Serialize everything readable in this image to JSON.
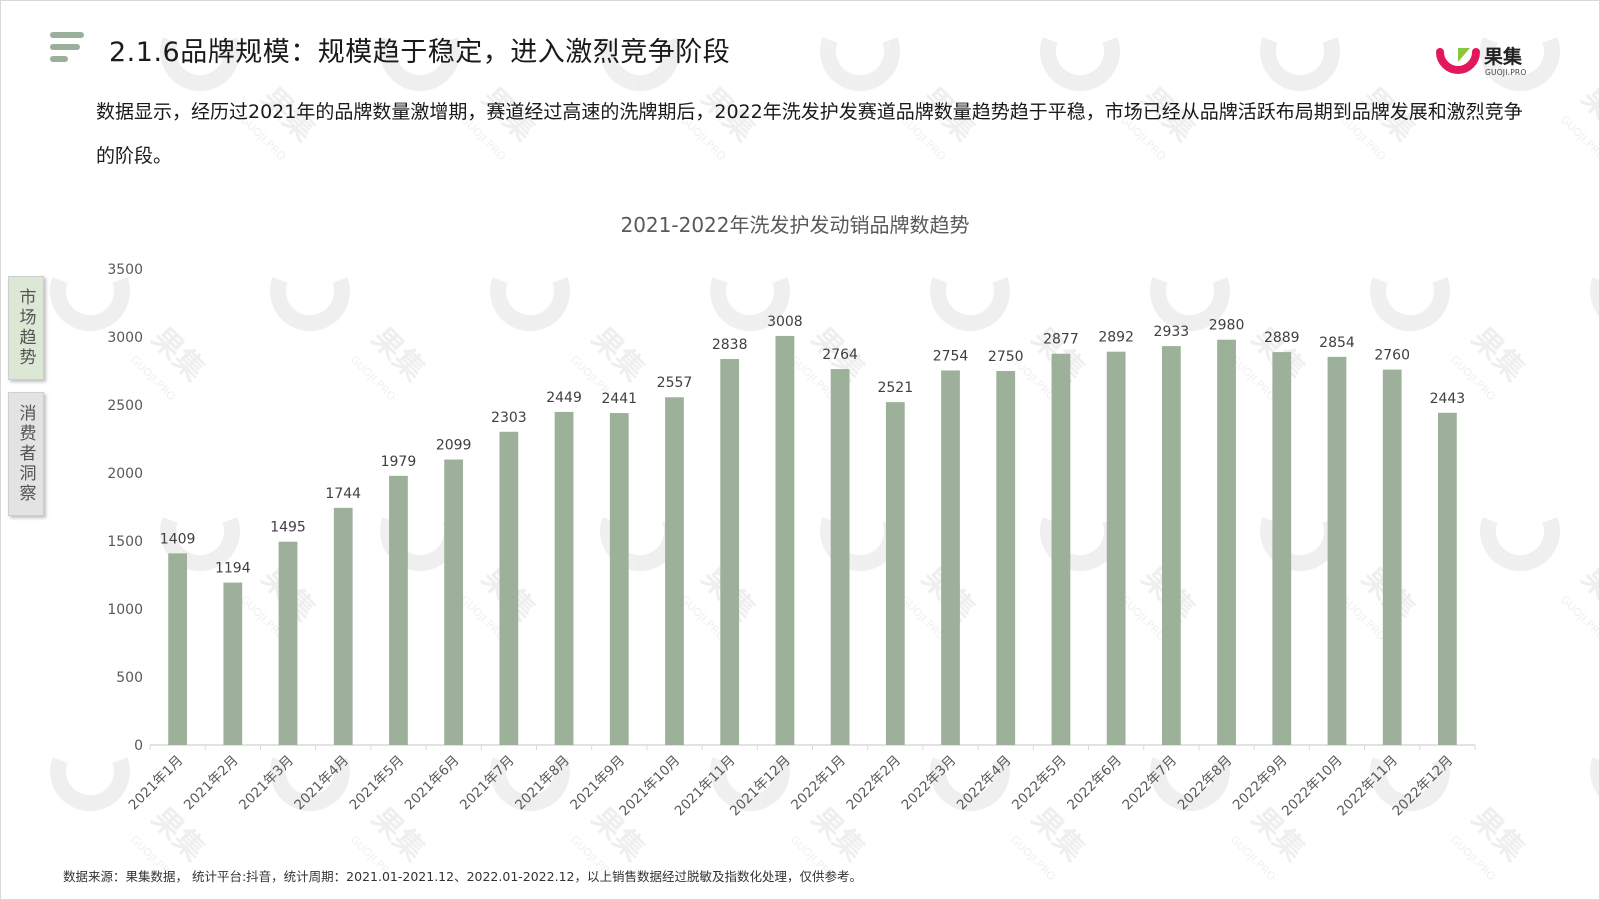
{
  "page": {
    "title": "2.1.6品牌规模：规模趋于稳定，进入激烈竞争阶段",
    "intro": "数据显示，经历过2021年的品牌数量激增期，赛道经过高速的洗牌期后，2022年洗发护发赛道品牌数量趋势趋于平稳，市场已经从品牌活跃布局期到品牌发展和激烈竞争的阶段。",
    "footer": "数据来源：果集数据， 统计平台:抖音，统计周期：2021.01-2021.12、2022.01-2022.12，以上销售数据经过脱敏及指数化处理，仅供参考。"
  },
  "logo": {
    "text": "果集",
    "subtext": "GUOJI.PRO",
    "colors": [
      "#e3175b",
      "#8cc63f"
    ]
  },
  "side_tabs": [
    {
      "label": "市场趋势",
      "active": true
    },
    {
      "label": "消费者洞察",
      "active": false
    }
  ],
  "icons": {
    "menu": "menu-lines-icon",
    "logo": "guoji-logo-icon"
  },
  "colors": {
    "bar": "#9db09a",
    "accent": "#9ab09a",
    "axis": "#d9d9d9",
    "tick_text": "#595959"
  },
  "watermark": {
    "text": "果集",
    "subtext": "GUOJI.PRO"
  },
  "chart_data": {
    "type": "bar",
    "title": "2021-2022年洗发护发动销品牌数趋势",
    "categories": [
      "2021年1月",
      "2021年2月",
      "2021年3月",
      "2021年4月",
      "2021年5月",
      "2021年6月",
      "2021年7月",
      "2021年8月",
      "2021年9月",
      "2021年10月",
      "2021年11月",
      "2021年12月",
      "2022年1月",
      "2022年2月",
      "2022年3月",
      "2022年4月",
      "2022年5月",
      "2022年6月",
      "2022年7月",
      "2022年8月",
      "2022年9月",
      "2022年10月",
      "2022年11月",
      "2022年12月"
    ],
    "values": [
      1409,
      1194,
      1495,
      1744,
      1979,
      2099,
      2303,
      2449,
      2441,
      2557,
      2838,
      3008,
      2764,
      2521,
      2754,
      2750,
      2877,
      2892,
      2933,
      2980,
      2889,
      2854,
      2760,
      2443
    ],
    "ylim": [
      0,
      3500
    ],
    "yticks": [
      0,
      500,
      1000,
      1500,
      2000,
      2500,
      3000,
      3500
    ],
    "xlabel": "",
    "ylabel": "",
    "grid": false,
    "legend": "none",
    "data_labels": true
  }
}
